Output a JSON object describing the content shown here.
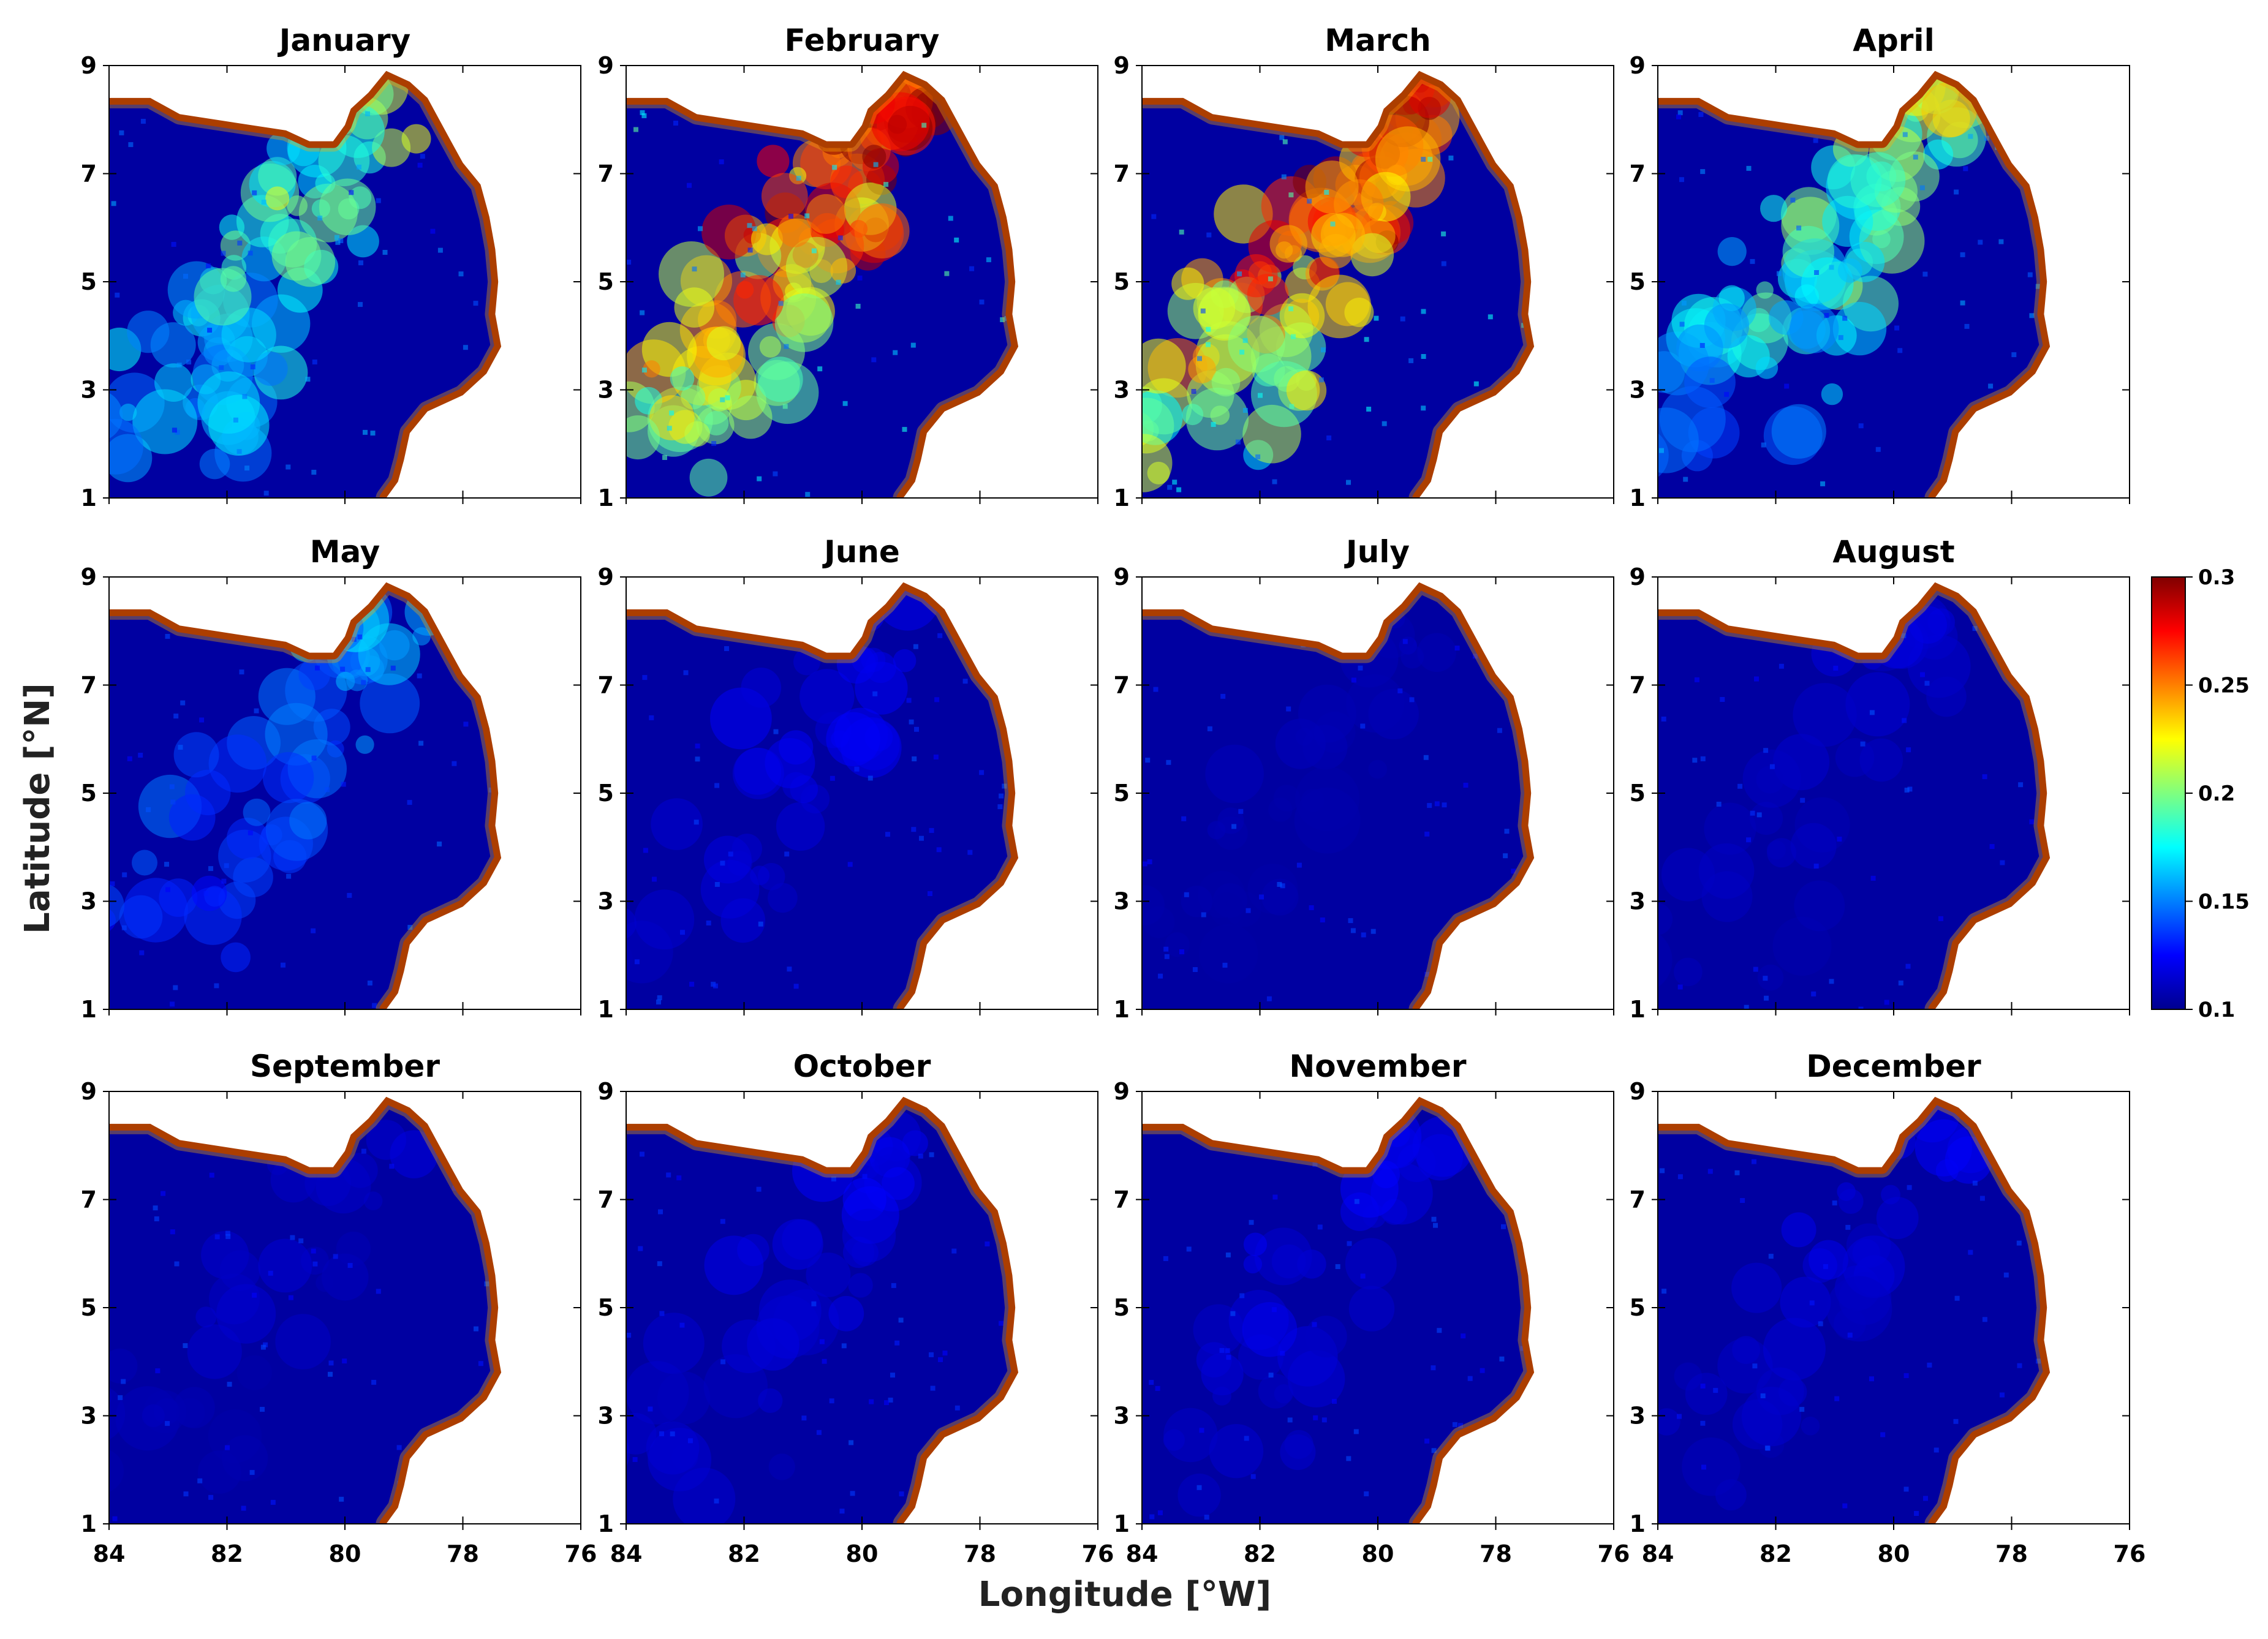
{
  "chart_data": {
    "type": "heatmap",
    "xlabel": "Longitude [°W]",
    "ylabel": "Latitude [°N]",
    "xlim": [
      84,
      76
    ],
    "ylim": [
      1,
      9
    ],
    "x_ticks": [
      "84",
      "82",
      "80",
      "78",
      "76"
    ],
    "y_ticks": [
      "9",
      "7",
      "5",
      "3",
      "1"
    ],
    "colorbar": {
      "colormap": "jet",
      "vmin": 0.1,
      "vmax": 0.3,
      "ticks": [
        "0.3",
        "0.25",
        "0.2",
        "0.15",
        "0.1"
      ]
    },
    "grid": false,
    "panels": [
      {
        "title": "January",
        "plume_strength": 0.55
      },
      {
        "title": "February",
        "plume_strength": 1.0
      },
      {
        "title": "March",
        "plume_strength": 1.0
      },
      {
        "title": "April",
        "plume_strength": 0.55
      },
      {
        "title": "May",
        "plume_strength": 0.3
      },
      {
        "title": "June",
        "plume_strength": 0.12
      },
      {
        "title": "July",
        "plume_strength": 0.06
      },
      {
        "title": "August",
        "plume_strength": 0.08
      },
      {
        "title": "September",
        "plume_strength": 0.08
      },
      {
        "title": "October",
        "plume_strength": 0.12
      },
      {
        "title": "November",
        "plume_strength": 0.12
      },
      {
        "title": "December",
        "plume_strength": 0.1
      }
    ]
  }
}
